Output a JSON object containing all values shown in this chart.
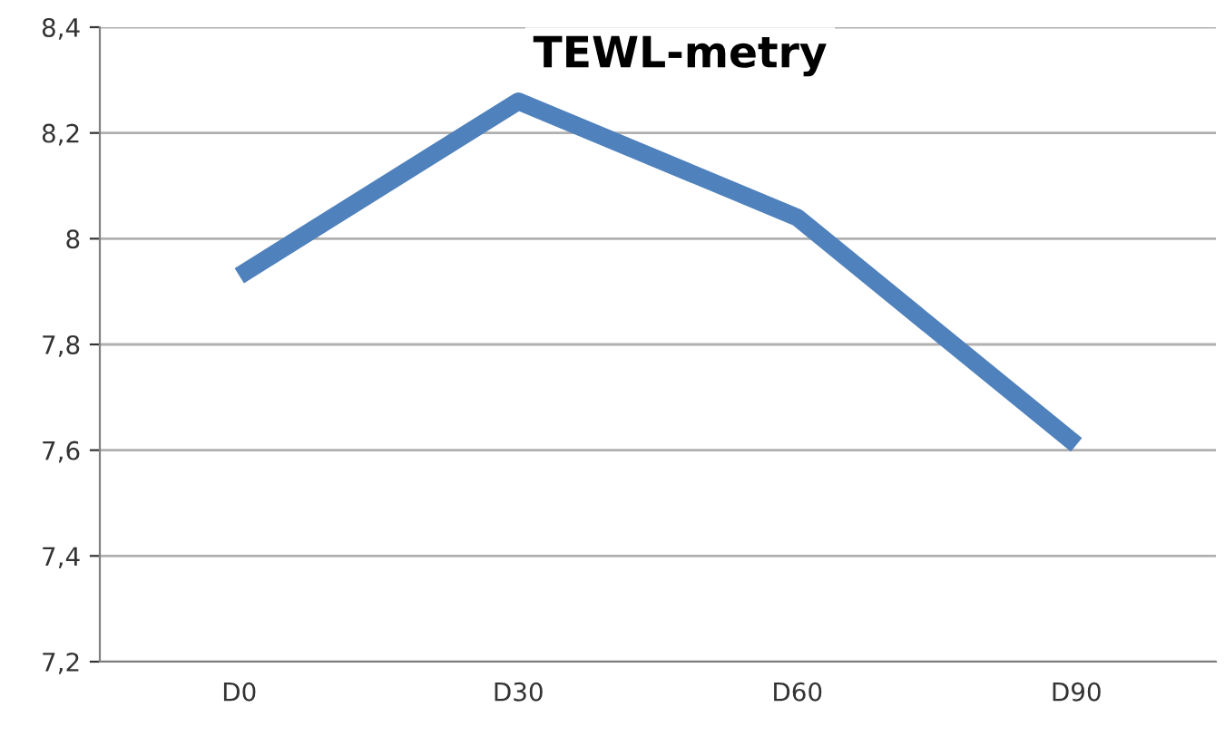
{
  "chart_data": {
    "type": "line",
    "title": "TEWL-metry",
    "categories": [
      "D0",
      "D30",
      "D60",
      "D90"
    ],
    "series": [
      {
        "color": "#4f81bd",
        "values": [
          7.93,
          8.26,
          8.04,
          7.61
        ]
      }
    ],
    "ylim": [
      7.2,
      8.4
    ],
    "yticks": [
      {
        "value": 7.2,
        "label": "7,2"
      },
      {
        "value": 7.4,
        "label": "7,4"
      },
      {
        "value": 7.6,
        "label": "7,6"
      },
      {
        "value": 7.8,
        "label": "7,8"
      },
      8,
      {
        "value": 8.2,
        "label": "8,2"
      },
      {
        "value": 8.4,
        "label": "8,4"
      }
    ],
    "grid": "y",
    "legend": false,
    "marker": "none",
    "line_style": "solid"
  }
}
